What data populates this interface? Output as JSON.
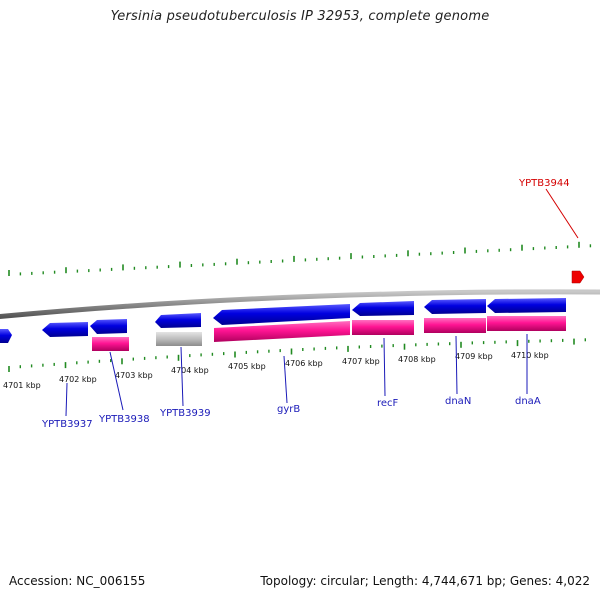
{
  "title": "Yersinia pseudotuberculosis IP 32953, complete genome",
  "footer": {
    "accession": "Accession: NC_006155",
    "summary": "Topology: circular; Length: 4,744,671 bp; Genes: 4,022"
  },
  "colors": {
    "forward_gene": "#0000dd",
    "reverse_gene": "#ff1493",
    "rna_gene": "#bdbdbd",
    "ticks": "#228b22",
    "backbone": "#8a8a8a",
    "label_blue": "#1a1ab8",
    "label_red": "#d40000",
    "marker": "#ee0000"
  },
  "kbp_labels": [
    "4701 kbp",
    "4702 kbp",
    "4703 kbp",
    "4704 kbp",
    "4705 kbp",
    "4706 kbp",
    "4707 kbp",
    "4708 kbp",
    "4709 kbp",
    "4710 kbp"
  ],
  "gene_labels": [
    {
      "name": "YPTB3937",
      "color": "blue"
    },
    {
      "name": "YPTB3938",
      "color": "blue"
    },
    {
      "name": "YPTB3939",
      "color": "blue"
    },
    {
      "name": "gyrB",
      "color": "blue"
    },
    {
      "name": "recF",
      "color": "blue"
    },
    {
      "name": "dnaN",
      "color": "blue"
    },
    {
      "name": "dnaA",
      "color": "blue"
    },
    {
      "name": "YPTB3944",
      "color": "red"
    }
  ]
}
